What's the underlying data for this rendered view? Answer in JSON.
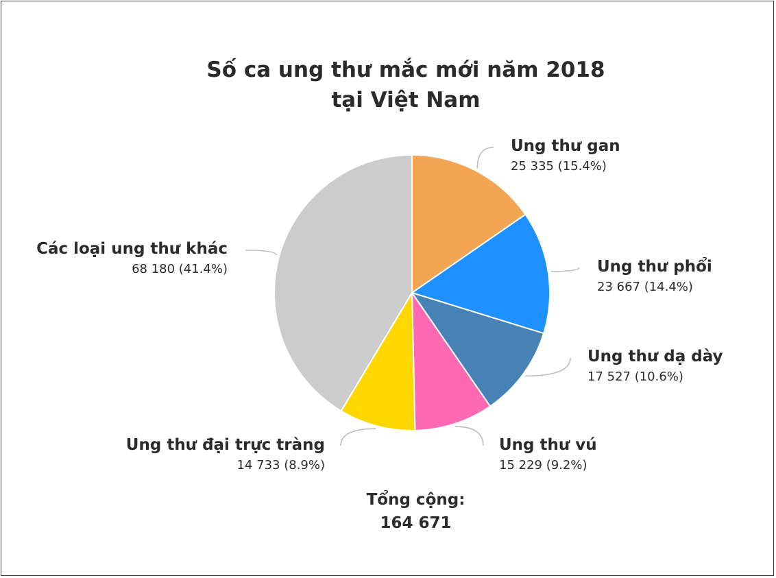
{
  "title": {
    "line1": "Số ca ung thư mắc mới năm 2018",
    "line2": "tại Việt Nam"
  },
  "total": {
    "label": "Tổng cộng:",
    "value": "164 671"
  },
  "chart_data": {
    "type": "pie",
    "title": "Số ca ung thư mắc mới năm 2018 tại Việt Nam",
    "total": 164671,
    "slices": [
      {
        "label": "Ung thư gan",
        "value": 25335,
        "display": "25 335 (15.4%)",
        "percent": 15.4,
        "color": "#F2A654"
      },
      {
        "label": "Ung thư phổi",
        "value": 23667,
        "display": "23 667 (14.4%)",
        "percent": 14.4,
        "color": "#1E90FF"
      },
      {
        "label": "Ung thư dạ dày",
        "value": 17527,
        "display": "17 527 (10.6%)",
        "percent": 10.6,
        "color": "#4682B4"
      },
      {
        "label": "Ung thư vú",
        "value": 15229,
        "display": "15 229 (9.2%)",
        "percent": 9.2,
        "color": "#FF69B4"
      },
      {
        "label": "Ung thư đại trực tràng",
        "value": 14733,
        "display": "14 733 (8.9%)",
        "percent": 8.9,
        "color": "#FFD700"
      },
      {
        "label": "Các loại ung thư khác",
        "value": 68180,
        "display": "68 180 (41.4%)",
        "percent": 41.4,
        "color": "#CCCCCC"
      }
    ]
  }
}
